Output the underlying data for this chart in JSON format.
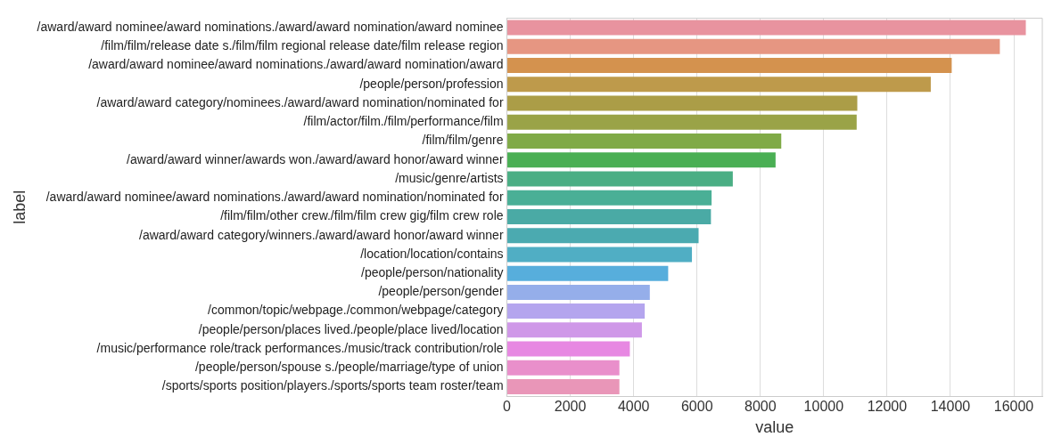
{
  "chart_data": {
    "type": "bar",
    "orientation": "horizontal",
    "xlabel": "value",
    "ylabel": "label",
    "categories": [
      "/award/award nominee/award nominations./award/award nomination/award nominee",
      "/film/film/release date s./film/film regional release date/film release region",
      "/award/award nominee/award nominations./award/award nomination/award",
      "/people/person/profession",
      "/award/award category/nominees./award/award nomination/nominated for",
      "/film/actor/film./film/performance/film",
      "/film/film/genre",
      "/award/award winner/awards won./award/award honor/award winner",
      "/music/genre/artists",
      "/award/award nominee/award nominations./award/award nomination/nominated for",
      "/film/film/other crew./film/film crew gig/film crew role",
      "/award/award category/winners./award/award honor/award winner",
      "/location/location/contains",
      "/people/person/nationality",
      "/people/person/gender",
      "/common/topic/webpage./common/webpage/category",
      "/people/person/places lived./people/place lived/location",
      "/music/performance role/track performances./music/track contribution/role",
      "/people/person/spouse s./people/marriage/type of union",
      "/sports/sports position/players./sports/sports team roster/team"
    ],
    "values": [
      16380,
      15560,
      14040,
      13380,
      11060,
      11040,
      8660,
      8480,
      7130,
      6460,
      6440,
      6050,
      5840,
      5090,
      4510,
      4350,
      4260,
      3880,
      3550,
      3550
    ],
    "colors": [
      "#e8939f",
      "#e69682",
      "#d4924e",
      "#be9a4b",
      "#ab9d47",
      "#9aa347",
      "#80aa47",
      "#4aaf54",
      "#4aae84",
      "#4aaf96",
      "#4aaaa5",
      "#4baab0",
      "#50aec4",
      "#57aedc",
      "#95aeea",
      "#b4a5ee",
      "#cf98e8",
      "#e788e2",
      "#e98fcb",
      "#e996b8"
    ],
    "xlim": [
      0,
      16900
    ],
    "xticks": [
      0,
      2000,
      4000,
      6000,
      8000,
      10000,
      12000,
      14000,
      16000
    ],
    "grid": "x",
    "legend": false
  }
}
